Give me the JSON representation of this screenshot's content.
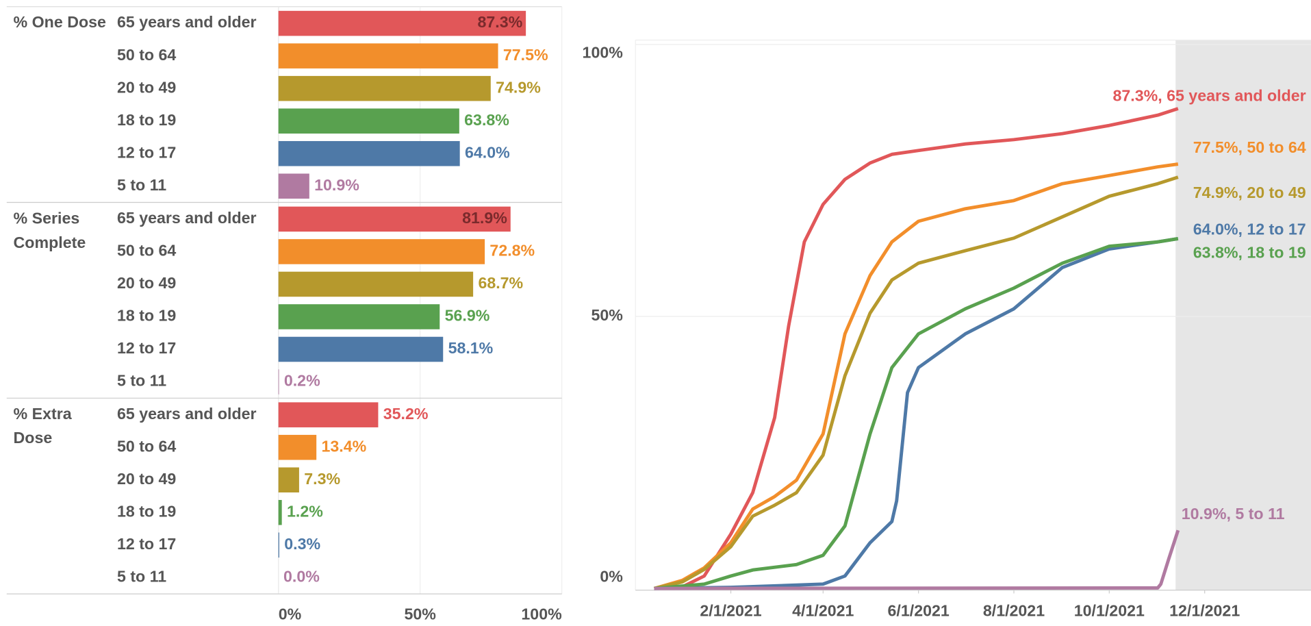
{
  "chart_data": [
    {
      "type": "bar",
      "categories": [
        "65 years and older",
        "50 to 64",
        "20 to 49",
        "18 to 19",
        "12 to 17",
        "5 to 11"
      ],
      "colors": [
        "#e15759",
        "#f28e2b",
        "#b6992d",
        "#59a14f",
        "#4e79a7",
        "#b07aa1"
      ],
      "panels": [
        {
          "name": "% One Dose",
          "values": [
            87.3,
            77.5,
            74.9,
            63.8,
            64.0,
            10.9
          ],
          "value_labels": [
            "87.3%",
            "77.5%",
            "74.9%",
            "63.8%",
            "64.0%",
            "10.9%"
          ]
        },
        {
          "name": "% Series Complete",
          "values": [
            81.9,
            72.8,
            68.7,
            56.9,
            58.1,
            0.2
          ],
          "value_labels": [
            "81.9%",
            "72.8%",
            "68.7%",
            "56.9%",
            "58.1%",
            "0.2%"
          ]
        },
        {
          "name": "% Extra Dose",
          "values": [
            35.2,
            13.4,
            7.3,
            1.2,
            0.3,
            0.0
          ],
          "value_labels": [
            "35.2%",
            "13.4%",
            "7.3%",
            "1.2%",
            "0.3%",
            "0.0%"
          ]
        }
      ],
      "xlim": [
        0,
        100
      ],
      "xticks": [
        {
          "value": 0,
          "label": "0%"
        },
        {
          "value": 50,
          "label": "50%"
        },
        {
          "value": 100,
          "label": "100%"
        }
      ],
      "grid": true
    },
    {
      "type": "line",
      "xlim": [
        "12/2/2020",
        "2/7/2022"
      ],
      "xticks": [
        "2/1/2021",
        "4/1/2021",
        "6/1/2021",
        "8/1/2021",
        "10/1/2021",
        "12/1/2021"
      ],
      "ylim": [
        -0.3,
        100.8
      ],
      "yticks": [
        {
          "value": 0,
          "label": "0%"
        },
        {
          "value": 50,
          "label": "50%"
        },
        {
          "value": 100,
          "label": "100%"
        }
      ],
      "grid": true,
      "series": [
        {
          "label": "87.3%, 65 years and older",
          "color": "#e15759",
          "x": [
            "12/14/2020",
            "1/1/2021",
            "1/15/2021",
            "2/1/2021",
            "2/15/2021",
            "3/1/2021",
            "3/10/2021",
            "3/20/2021",
            "4/1/2021",
            "4/15/2021",
            "5/1/2021",
            "5/15/2021",
            "6/1/2021",
            "7/1/2021",
            "8/1/2021",
            "9/1/2021",
            "10/1/2021",
            "11/1/2021",
            "11/14/2021"
          ],
          "values": [
            0,
            0.3,
            2.3,
            10,
            17.6,
            31.4,
            48.3,
            63.7,
            70.6,
            75.2,
            78.2,
            79.8,
            80.5,
            81.7,
            82.5,
            83.6,
            85.1,
            87,
            88.2
          ]
        },
        {
          "label": "77.5%, 50 to 64",
          "color": "#f28e2b",
          "x": [
            "12/14/2020",
            "1/1/2021",
            "1/15/2021",
            "2/1/2021",
            "2/15/2021",
            "3/1/2021",
            "3/15/2021",
            "4/1/2021",
            "4/15/2021",
            "5/1/2021",
            "5/15/2021",
            "6/1/2021",
            "7/1/2021",
            "8/1/2021",
            "9/1/2021",
            "10/1/2021",
            "11/1/2021",
            "11/14/2021"
          ],
          "values": [
            0,
            1.5,
            3.8,
            8.4,
            14.6,
            16.9,
            19.9,
            28.4,
            46.8,
            57.5,
            63.7,
            67.5,
            69.8,
            71.3,
            74.4,
            75.9,
            77.5,
            78
          ]
        },
        {
          "label": "74.9%, 20 to 49",
          "color": "#b6992d",
          "x": [
            "12/14/2020",
            "1/1/2021",
            "1/15/2021",
            "2/1/2021",
            "2/15/2021",
            "3/1/2021",
            "3/15/2021",
            "4/1/2021",
            "4/15/2021",
            "5/1/2021",
            "5/15/2021",
            "6/1/2021",
            "7/1/2021",
            "8/1/2021",
            "9/1/2021",
            "10/1/2021",
            "11/1/2021",
            "11/14/2021"
          ],
          "values": [
            0,
            1.2,
            3.5,
            7.7,
            13.3,
            15.3,
            17.6,
            24.5,
            39.1,
            50.6,
            56.7,
            59.8,
            62.1,
            64.4,
            68.3,
            72.1,
            74.4,
            75.6
          ]
        },
        {
          "label": "64.0%, 12 to 17",
          "color": "#4e79a7",
          "x": [
            "12/14/2020",
            "2/1/2021",
            "4/1/2021",
            "4/15/2021",
            "5/1/2021",
            "5/15/2021",
            "5/18/2021",
            "5/25/2021",
            "6/1/2021",
            "7/1/2021",
            "8/1/2021",
            "9/1/2021",
            "10/1/2021",
            "11/1/2021",
            "11/14/2021"
          ],
          "values": [
            0,
            0.2,
            0.8,
            2.3,
            8.4,
            12.3,
            16.1,
            36,
            40.6,
            46.8,
            51.4,
            59,
            62.4,
            63.7,
            64.3
          ]
        },
        {
          "label": "63.8%, 18 to 19",
          "color": "#59a14f",
          "x": [
            "12/14/2020",
            "1/15/2021",
            "2/1/2021",
            "2/15/2021",
            "3/15/2021",
            "4/1/2021",
            "4/15/2021",
            "5/1/2021",
            "5/15/2021",
            "6/1/2021",
            "7/1/2021",
            "8/1/2021",
            "9/1/2021",
            "10/1/2021",
            "11/1/2021",
            "11/14/2021"
          ],
          "values": [
            0,
            0.8,
            2.3,
            3.4,
            4.4,
            6.1,
            11.5,
            28.4,
            40.6,
            46.8,
            51.4,
            55.2,
            59.8,
            62.9,
            63.7,
            64.3
          ]
        },
        {
          "label": "10.9%, 5 to 11",
          "color": "#b07aa1",
          "x": [
            "12/14/2020",
            "11/1/2021",
            "11/3/2021",
            "11/8/2021",
            "11/14/2021"
          ],
          "values": [
            0,
            0.1,
            0.8,
            5.4,
            10.7
          ]
        }
      ]
    }
  ]
}
